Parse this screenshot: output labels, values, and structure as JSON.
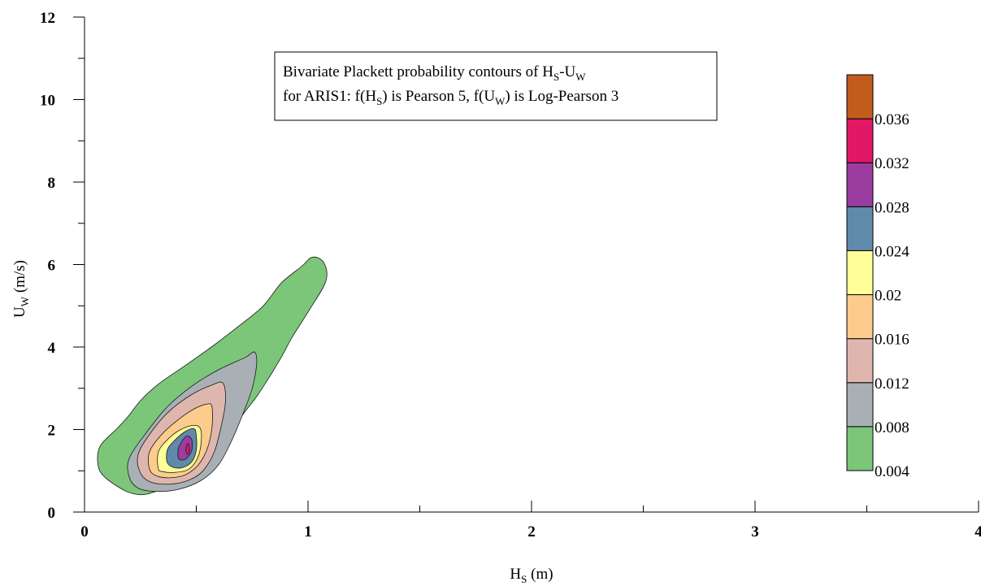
{
  "chart_data": {
    "type": "contour",
    "title_lines": [
      [
        "Bivariate Plackett probability contours of H",
        "S",
        "-U",
        "W"
      ],
      [
        "for ARIS1: f(H",
        "S",
        ") is Pearson 5, f(U",
        "W",
        ") is Log-Pearson 3"
      ]
    ],
    "xlabel": {
      "main": "H",
      "sub": "S",
      "unit": " (m)"
    },
    "ylabel": {
      "main": "U",
      "sub": "W",
      "unit": " (m/s)"
    },
    "xlim": [
      0,
      4
    ],
    "ylim": [
      0,
      12
    ],
    "x_ticks": [
      0,
      1,
      2,
      3,
      4
    ],
    "y_ticks": [
      0,
      2,
      4,
      6,
      8,
      10,
      12
    ],
    "grid": false,
    "legend": {
      "placement": "right",
      "levels": [
        0.004,
        0.008,
        0.012,
        0.016,
        0.02,
        0.024,
        0.028,
        0.032,
        0.036,
        0.04
      ],
      "tick_labels": [
        "0.004",
        "0.008",
        "0.012",
        "0.016",
        "0.02",
        "0.024",
        "0.028",
        "0.032",
        "0.036"
      ],
      "colors": [
        "#7cc67a",
        "#a9b0b5",
        "#dfb6ae",
        "#fccc8c",
        "#ffff99",
        "#5f8aaa",
        "#9a3ca0",
        "#e11866",
        "#c15c1c"
      ]
    },
    "contours": [
      {
        "level": 0.004,
        "points": [
          [
            0.06,
            1.15
          ],
          [
            0.07,
            1.6
          ],
          [
            0.15,
            2.05
          ],
          [
            0.2,
            2.35
          ],
          [
            0.25,
            2.7
          ],
          [
            0.33,
            3.1
          ],
          [
            0.45,
            3.55
          ],
          [
            0.58,
            4.05
          ],
          [
            0.7,
            4.55
          ],
          [
            0.8,
            5.0
          ],
          [
            0.88,
            5.55
          ],
          [
            0.97,
            5.95
          ],
          [
            1.02,
            6.18
          ],
          [
            1.07,
            6.05
          ],
          [
            1.08,
            5.6
          ],
          [
            1.0,
            4.85
          ],
          [
            0.93,
            4.25
          ],
          [
            0.88,
            3.75
          ],
          [
            0.83,
            3.3
          ],
          [
            0.77,
            2.8
          ],
          [
            0.7,
            2.3
          ],
          [
            0.65,
            1.85
          ],
          [
            0.58,
            1.45
          ],
          [
            0.5,
            1.0
          ],
          [
            0.42,
            0.72
          ],
          [
            0.32,
            0.5
          ],
          [
            0.25,
            0.42
          ],
          [
            0.18,
            0.52
          ],
          [
            0.09,
            0.85
          ]
        ]
      },
      {
        "level": 0.008,
        "points": [
          [
            0.2,
            0.85
          ],
          [
            0.2,
            1.3
          ],
          [
            0.28,
            1.95
          ],
          [
            0.37,
            2.55
          ],
          [
            0.48,
            3.05
          ],
          [
            0.6,
            3.45
          ],
          [
            0.72,
            3.75
          ],
          [
            0.76,
            3.88
          ],
          [
            0.77,
            3.6
          ],
          [
            0.75,
            3.0
          ],
          [
            0.71,
            2.4
          ],
          [
            0.66,
            1.75
          ],
          [
            0.6,
            1.15
          ],
          [
            0.52,
            0.76
          ],
          [
            0.42,
            0.55
          ],
          [
            0.32,
            0.5
          ],
          [
            0.24,
            0.58
          ]
        ]
      },
      {
        "level": 0.012,
        "points": [
          [
            0.25,
            0.95
          ],
          [
            0.24,
            1.4
          ],
          [
            0.3,
            1.95
          ],
          [
            0.38,
            2.45
          ],
          [
            0.48,
            2.85
          ],
          [
            0.57,
            3.08
          ],
          [
            0.62,
            3.12
          ],
          [
            0.63,
            2.65
          ],
          [
            0.61,
            2.05
          ],
          [
            0.58,
            1.45
          ],
          [
            0.53,
            1.0
          ],
          [
            0.47,
            0.78
          ],
          [
            0.39,
            0.68
          ],
          [
            0.3,
            0.72
          ]
        ]
      },
      {
        "level": 0.016,
        "points": [
          [
            0.29,
            1.05
          ],
          [
            0.29,
            1.45
          ],
          [
            0.34,
            1.85
          ],
          [
            0.41,
            2.2
          ],
          [
            0.49,
            2.5
          ],
          [
            0.55,
            2.62
          ],
          [
            0.57,
            2.55
          ],
          [
            0.57,
            2.05
          ],
          [
            0.55,
            1.55
          ],
          [
            0.51,
            1.15
          ],
          [
            0.45,
            0.9
          ],
          [
            0.38,
            0.83
          ],
          [
            0.32,
            0.88
          ]
        ]
      },
      {
        "level": 0.02,
        "points": [
          [
            0.33,
            1.05
          ],
          [
            0.33,
            1.45
          ],
          [
            0.37,
            1.75
          ],
          [
            0.43,
            2.0
          ],
          [
            0.49,
            2.1
          ],
          [
            0.52,
            2.0
          ],
          [
            0.52,
            1.6
          ],
          [
            0.5,
            1.25
          ],
          [
            0.46,
            1.02
          ],
          [
            0.4,
            0.96
          ],
          [
            0.35,
            0.98
          ]
        ]
      },
      {
        "level": 0.024,
        "points": [
          [
            0.37,
            1.2
          ],
          [
            0.37,
            1.5
          ],
          [
            0.4,
            1.72
          ],
          [
            0.45,
            1.95
          ],
          [
            0.49,
            2.02
          ],
          [
            0.5,
            1.85
          ],
          [
            0.5,
            1.5
          ],
          [
            0.48,
            1.22
          ],
          [
            0.44,
            1.08
          ],
          [
            0.4,
            1.08
          ]
        ]
      },
      {
        "level": 0.028,
        "points": [
          [
            0.42,
            1.3
          ],
          [
            0.42,
            1.55
          ],
          [
            0.44,
            1.75
          ],
          [
            0.46,
            1.85
          ],
          [
            0.48,
            1.75
          ],
          [
            0.48,
            1.5
          ],
          [
            0.46,
            1.32
          ],
          [
            0.44,
            1.26
          ]
        ]
      },
      {
        "level": 0.032,
        "points": [
          [
            0.455,
            1.45
          ],
          [
            0.455,
            1.58
          ],
          [
            0.462,
            1.66
          ],
          [
            0.468,
            1.58
          ],
          [
            0.468,
            1.45
          ],
          [
            0.462,
            1.4
          ]
        ]
      }
    ]
  }
}
